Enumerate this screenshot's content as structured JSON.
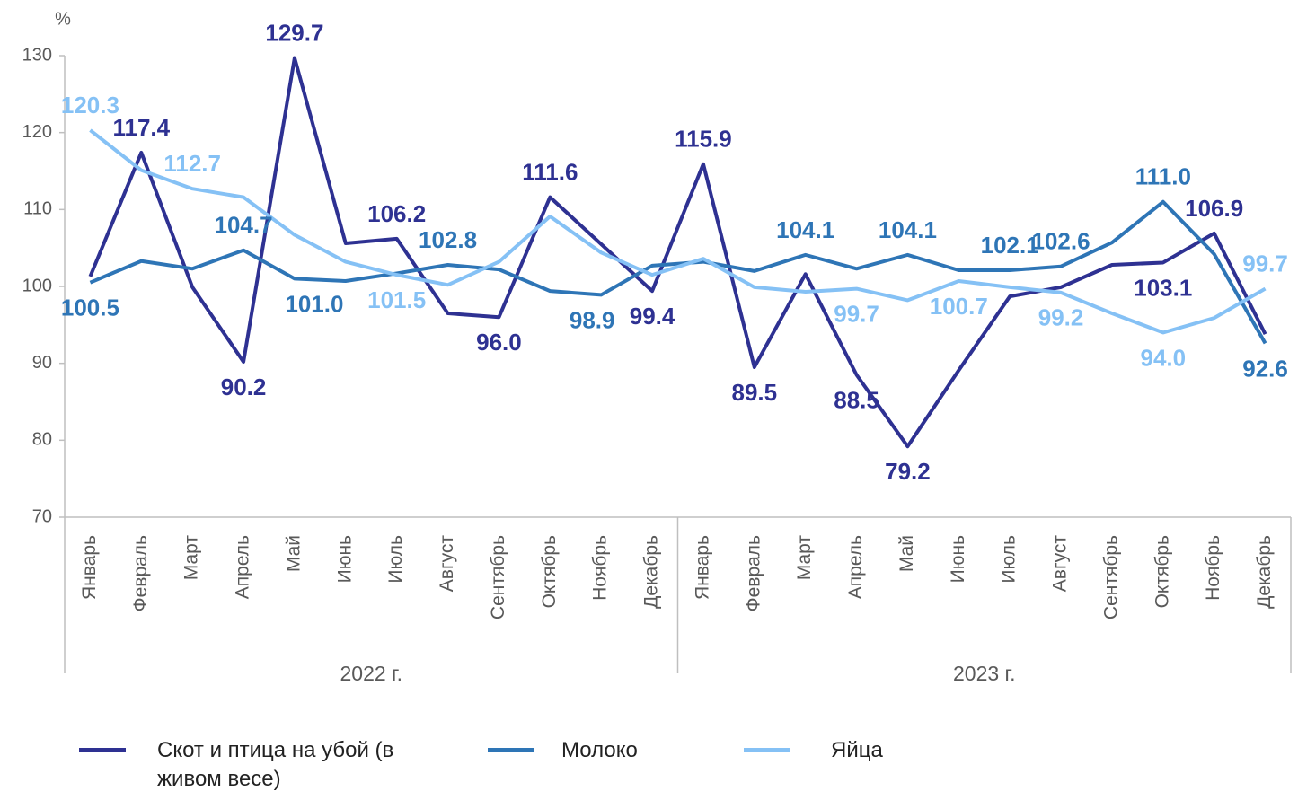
{
  "chart_data": {
    "type": "line",
    "unit_label": "%",
    "categories": [
      "Январь",
      "Февраль",
      "Март",
      "Апрель",
      "Май",
      "Июнь",
      "Июль",
      "Август",
      "Сентябрь",
      "Октябрь",
      "Ноябрь",
      "Декабрь",
      "Январь",
      "Февраль",
      "Март",
      "Апрель",
      "Май",
      "Июнь",
      "Июль",
      "Август",
      "Сентябрь",
      "Октябрь",
      "Ноябрь",
      "Декабрь"
    ],
    "x_groups": [
      "2022 г.",
      "2023 г."
    ],
    "ylim": [
      70,
      130
    ],
    "yticks": [
      70,
      80,
      90,
      100,
      110,
      120,
      130
    ],
    "grid": false,
    "legend": "bottom",
    "series": [
      {
        "name": "Скот и птица на убой (в живом весе)",
        "color": "#2e3192",
        "values": [
          101.3,
          117.4,
          99.9,
          90.2,
          129.7,
          105.6,
          106.2,
          96.5,
          96.0,
          111.6,
          105.5,
          99.4,
          115.9,
          89.5,
          101.6,
          88.5,
          79.2,
          89.1,
          98.7,
          99.9,
          102.8,
          103.1,
          106.9,
          93.8
        ],
        "value_labels": [
          null,
          "117.4",
          null,
          "90.2",
          "129.7",
          null,
          "106.2",
          null,
          "96.0",
          "111.6",
          null,
          "99.4",
          "115.9",
          "89.5",
          null,
          "88.5",
          "79.2",
          null,
          null,
          null,
          null,
          "103.1",
          "106.9",
          null
        ]
      },
      {
        "name": "Молоко",
        "color": "#2e75b6",
        "values": [
          100.5,
          103.3,
          102.3,
          104.7,
          101.0,
          100.7,
          101.7,
          102.8,
          102.2,
          99.4,
          98.9,
          102.7,
          103.2,
          102.0,
          104.1,
          102.3,
          104.1,
          102.1,
          102.1,
          102.6,
          105.7,
          111.0,
          104.2,
          92.6
        ],
        "value_labels": [
          "100.5",
          null,
          null,
          "104.7",
          "101.0",
          null,
          null,
          "102.8",
          null,
          null,
          "98.9",
          null,
          null,
          null,
          "104.1",
          null,
          "104.1",
          null,
          "102.1",
          "102.6",
          null,
          "111.0",
          null,
          "92.6"
        ]
      },
      {
        "name": "Яйца",
        "color": "#85c1f5",
        "values": [
          120.3,
          115.1,
          112.7,
          111.6,
          106.7,
          103.2,
          101.5,
          100.2,
          103.2,
          109.1,
          104.4,
          101.5,
          103.6,
          99.9,
          99.3,
          99.7,
          98.2,
          100.7,
          99.9,
          99.2,
          96.5,
          94.0,
          95.9,
          99.7
        ],
        "value_labels": [
          "120.3",
          null,
          "112.7",
          null,
          null,
          null,
          "101.5",
          null,
          null,
          null,
          null,
          null,
          null,
          null,
          null,
          "99.7",
          null,
          "100.7",
          null,
          "99.2",
          null,
          "94.0",
          null,
          "99.7"
        ]
      }
    ]
  }
}
